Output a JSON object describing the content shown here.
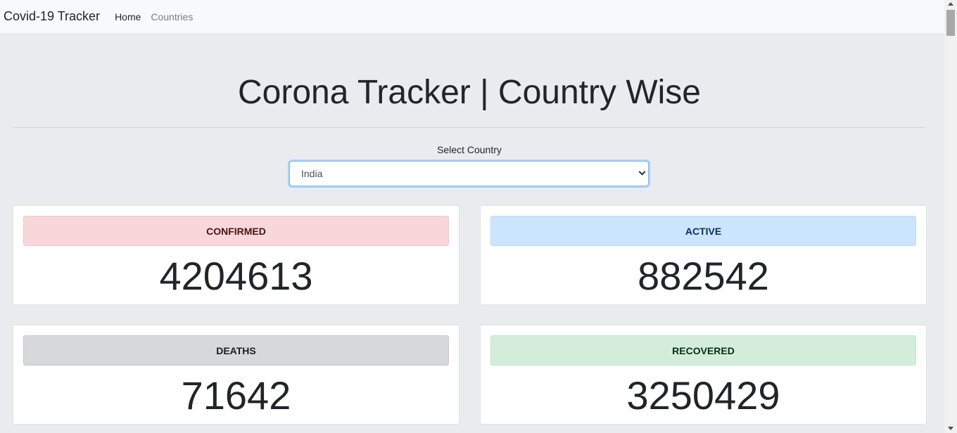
{
  "navbar": {
    "brand": "Covid-19 Tracker",
    "links": [
      {
        "label": "Home",
        "active": true
      },
      {
        "label": "Countries",
        "active": false
      }
    ]
  },
  "page": {
    "title": "Corona Tracker | Country Wise"
  },
  "country_select": {
    "label": "Select Country",
    "selected": "India"
  },
  "stats": {
    "confirmed": {
      "label": "CONFIRMED",
      "value": "4204613",
      "color": "#f8d7da"
    },
    "active": {
      "label": "ACTIVE",
      "value": "882542",
      "color": "#cce5ff"
    },
    "deaths": {
      "label": "DEATHS",
      "value": "71642",
      "color": "#d6d8d9"
    },
    "recovered": {
      "label": "RECOVERED",
      "value": "3250429",
      "color": "#d4edda"
    }
  }
}
